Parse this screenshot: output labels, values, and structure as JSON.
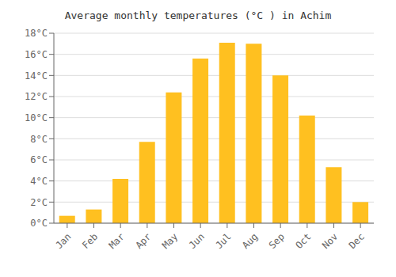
{
  "chart_data": {
    "type": "bar",
    "title": "Average monthly temperatures (°C ) in Achim",
    "categories": [
      "Jan",
      "Feb",
      "Mar",
      "Apr",
      "May",
      "Jun",
      "Jul",
      "Aug",
      "Sep",
      "Oct",
      "Nov",
      "Dec"
    ],
    "values": [
      0.7,
      1.3,
      4.2,
      7.7,
      12.4,
      15.6,
      17.1,
      17.0,
      14.0,
      10.2,
      5.3,
      2.0
    ],
    "color": "#FFC020",
    "ylim": [
      0,
      18
    ],
    "yticks": [
      {
        "value": 0,
        "label": "0°C"
      },
      {
        "value": 2,
        "label": "2°C"
      },
      {
        "value": 4,
        "label": "4°C"
      },
      {
        "value": 6,
        "label": "6°C"
      },
      {
        "value": 8,
        "label": "8°C"
      },
      {
        "value": 10,
        "label": "10°C"
      },
      {
        "value": 12,
        "label": "12°C"
      },
      {
        "value": 14,
        "label": "14°C"
      },
      {
        "value": 16,
        "label": "16°C"
      },
      {
        "value": 18,
        "label": "18°C"
      }
    ],
    "grid": true
  }
}
